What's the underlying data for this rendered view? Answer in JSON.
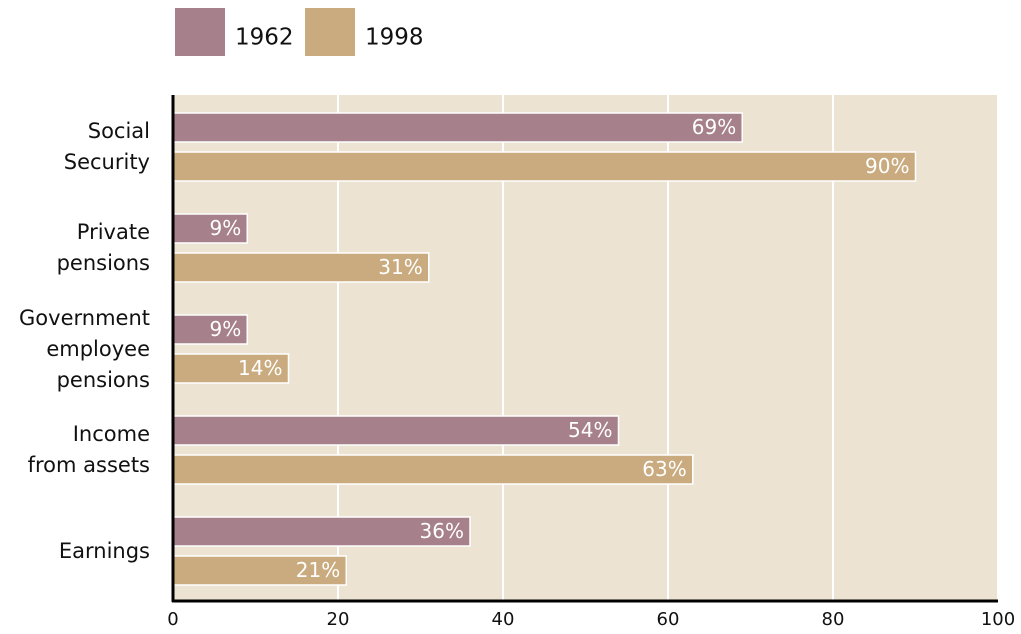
{
  "chart_data": {
    "type": "bar",
    "orientation": "horizontal",
    "categories": [
      "Social\nSecurity",
      "Private\npensions",
      "Government\nemployee\npensions",
      "Income\nfrom assets",
      "Earnings"
    ],
    "series": [
      {
        "name": "1962",
        "color": "#a6808a",
        "values": [
          69,
          9,
          9,
          54,
          36
        ],
        "value_labels": [
          "69%",
          "9%",
          "9%",
          "54%",
          "36%"
        ]
      },
      {
        "name": "1998",
        "color": "#c9ab7f",
        "values": [
          90,
          31,
          14,
          63,
          21
        ],
        "value_labels": [
          "90%",
          "31%",
          "14%",
          "63%",
          "21%"
        ]
      }
    ],
    "xlim": [
      0,
      100
    ],
    "xticks": [
      0,
      20,
      40,
      60,
      80,
      100
    ],
    "grid": true,
    "legend": "top"
  }
}
